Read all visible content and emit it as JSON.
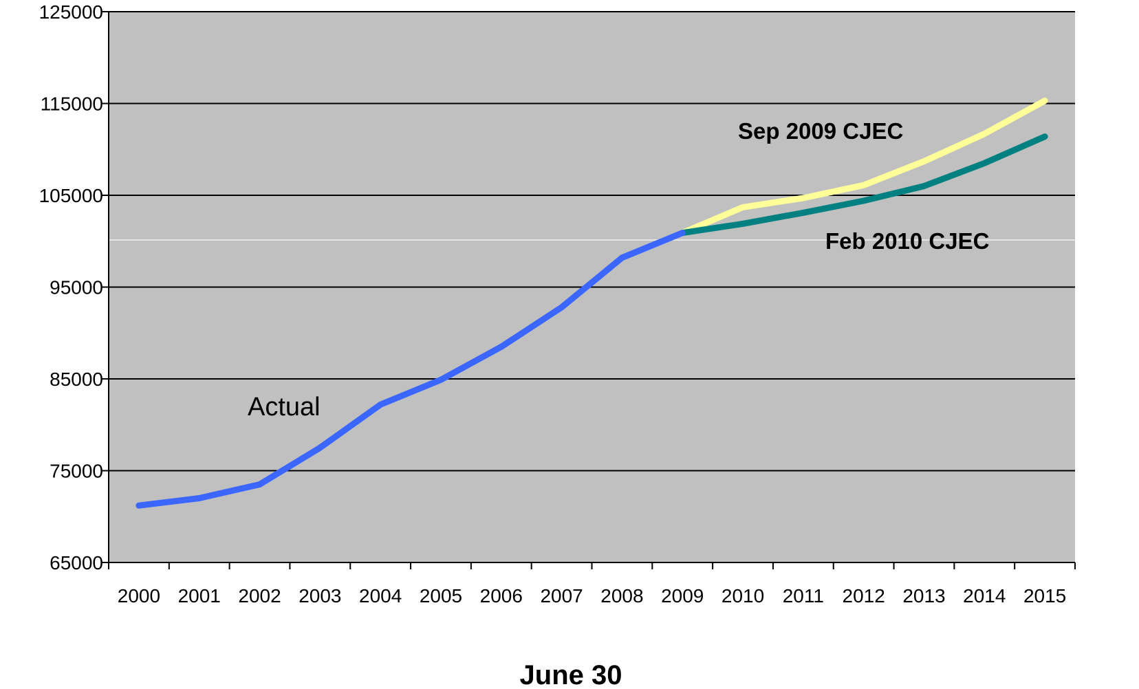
{
  "chart_data": {
    "type": "line",
    "title": "",
    "xlabel": "June 30",
    "ylabel": "",
    "ylim": [
      65000,
      125000
    ],
    "yticks": [
      65000,
      75000,
      85000,
      95000,
      105000,
      115000,
      125000
    ],
    "categories": [
      "2000",
      "2001",
      "2002",
      "2003",
      "2004",
      "2005",
      "2006",
      "2007",
      "2008",
      "2009",
      "2010",
      "2011",
      "2012",
      "2013",
      "2014",
      "2015"
    ],
    "grid": true,
    "plot_background": "#c0c0c0",
    "annotations": [
      {
        "text": "Actual",
        "series": "actual"
      },
      {
        "text": "Sep 2009  CJEC",
        "series": "sep2009"
      },
      {
        "text": "Feb 2010  CJEC",
        "series": "feb2010"
      }
    ],
    "series": [
      {
        "key": "actual",
        "color": "#3b66ff",
        "x": [
          "2000",
          "2001",
          "2002",
          "2003",
          "2004",
          "2005",
          "2006",
          "2007",
          "2008",
          "2009"
        ],
        "values": [
          71200,
          72000,
          73500,
          77500,
          82200,
          84900,
          88500,
          92800,
          98200,
          100900
        ]
      },
      {
        "key": "sep2009",
        "color": "#ffff99",
        "x": [
          "2009",
          "2010",
          "2011",
          "2012",
          "2013",
          "2014",
          "2015"
        ],
        "values": [
          100900,
          103700,
          104700,
          106100,
          108700,
          111700,
          115300
        ]
      },
      {
        "key": "feb2010",
        "color": "#008080",
        "x": [
          "2009",
          "2010",
          "2011",
          "2012",
          "2013",
          "2014",
          "2015"
        ],
        "values": [
          100900,
          101900,
          103100,
          104400,
          106000,
          108500,
          111400
        ]
      }
    ]
  }
}
